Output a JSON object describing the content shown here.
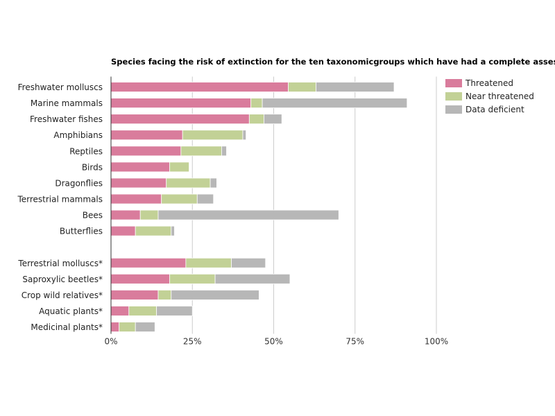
{
  "chart_data": {
    "type": "bar",
    "orientation": "horizontal",
    "stacked": true,
    "title": "Species facing the risk of extinction for the ten taxonomicgroups which have had a complete assessment",
    "xlabel": "",
    "ylabel": "",
    "xlim": [
      0,
      100
    ],
    "x_ticks": [
      "0%",
      "25%",
      "50%",
      "75%",
      "100%"
    ],
    "x_tick_values": [
      0,
      25,
      50,
      75,
      100
    ],
    "grid": true,
    "legend_position": "top-right",
    "categories": [
      "Freshwater molluscs",
      "Marine mammals",
      "Freshwater fishes",
      "Amphibians",
      "Reptiles",
      "Birds",
      "Dragonflies",
      "Terrestrial mammals",
      "Bees",
      "Butterflies",
      "",
      "Terrestrial molluscs*",
      "Saproxylic beetles*",
      "Crop wild relatives*",
      "Aquatic plants*",
      "Medicinal plants*"
    ],
    "series": [
      {
        "name": "Threatened",
        "color": "#d97c9c",
        "values": [
          54.5,
          43,
          42.5,
          22,
          21.5,
          18,
          17,
          15.5,
          9,
          7.5,
          null,
          23,
          18,
          14.5,
          5.5,
          2.5
        ]
      },
      {
        "name": "Near threatened",
        "color": "#c2d196",
        "values": [
          8.5,
          3.5,
          4.5,
          18.5,
          12.5,
          6,
          13.5,
          11,
          5.5,
          11,
          null,
          14,
          14,
          4,
          8.5,
          5
        ]
      },
      {
        "name": "Data deficient",
        "color": "#b7b7b7",
        "values": [
          24,
          44.5,
          5.5,
          1,
          1.5,
          0,
          2,
          5,
          55.5,
          1,
          null,
          10.5,
          23,
          27,
          11,
          6
        ]
      }
    ]
  }
}
